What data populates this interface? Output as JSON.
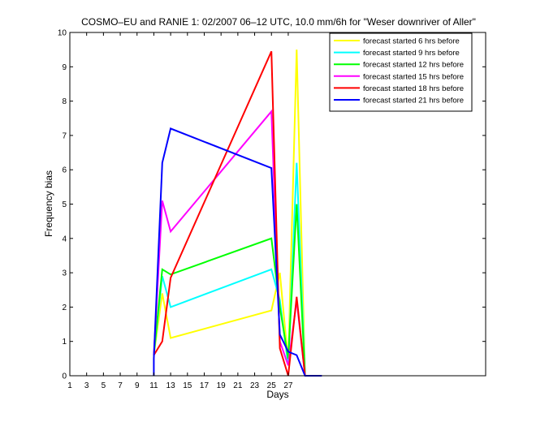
{
  "chart_data": {
    "type": "line",
    "title": "COSMO–EU and RANIE 1: 02/2007 06–12 UTC, 10.0 mm/6h for \"Weser downriver of Aller\"",
    "xlabel": "Days",
    "ylabel": "Frequency bias",
    "xlim": [
      1,
      50.5
    ],
    "ylim": [
      0,
      10
    ],
    "xticks": [
      1,
      3,
      5,
      7,
      9,
      11,
      13,
      15,
      17,
      19,
      21,
      23,
      25,
      27
    ],
    "yticks": [
      0,
      1,
      2,
      3,
      4,
      5,
      6,
      7,
      8,
      9,
      10
    ],
    "grid": false,
    "legend_position": "top-right",
    "series": [
      {
        "name": "forecast started 6 hrs before",
        "color": "#ffff00",
        "points": [
          [
            11,
            0.6
          ],
          [
            12,
            2.4
          ],
          [
            13,
            1.1
          ],
          [
            25,
            1.9
          ],
          [
            26,
            3.0
          ],
          [
            27,
            0.4
          ],
          [
            28,
            9.5
          ],
          [
            29,
            0.0
          ]
        ]
      },
      {
        "name": "forecast started 9 hrs before",
        "color": "#00ffff",
        "points": [
          [
            11,
            0.6
          ],
          [
            12,
            2.9
          ],
          [
            13,
            2.0
          ],
          [
            25,
            3.1
          ],
          [
            26,
            2.2
          ],
          [
            27,
            0.3
          ],
          [
            28,
            6.2
          ],
          [
            29,
            0.0
          ]
        ]
      },
      {
        "name": "forecast started 12 hrs before",
        "color": "#00ff00",
        "points": [
          [
            11,
            0.6
          ],
          [
            12,
            3.1
          ],
          [
            13,
            2.95
          ],
          [
            25,
            4.0
          ],
          [
            26,
            2.0
          ],
          [
            27,
            0.5
          ],
          [
            28,
            5.0
          ],
          [
            29,
            0.0
          ]
        ]
      },
      {
        "name": "forecast started 15 hrs before",
        "color": "#ff00ff",
        "points": [
          [
            11,
            0.6
          ],
          [
            12,
            5.1
          ],
          [
            13,
            4.2
          ],
          [
            25,
            7.7
          ],
          [
            26,
            1.0
          ],
          [
            27,
            0.3
          ],
          [
            28,
            2.2
          ],
          [
            29,
            0.0
          ]
        ]
      },
      {
        "name": "forecast started 18 hrs before",
        "color": "#ff0000",
        "points": [
          [
            11,
            0.6
          ],
          [
            12,
            1.0
          ],
          [
            13,
            2.85
          ],
          [
            25,
            9.45
          ],
          [
            26,
            0.8
          ],
          [
            27,
            0.0
          ],
          [
            28,
            2.3
          ],
          [
            29,
            0.0
          ]
        ]
      },
      {
        "name": "forecast started 21 hrs before",
        "color": "#0000ff",
        "points": [
          [
            11,
            0.0
          ],
          [
            11,
            0.5
          ],
          [
            12,
            6.2
          ],
          [
            13,
            7.2
          ],
          [
            25,
            6.05
          ],
          [
            26,
            1.2
          ],
          [
            27,
            0.7
          ],
          [
            28,
            0.6
          ],
          [
            29,
            0.0
          ],
          [
            31,
            0.0
          ]
        ]
      }
    ]
  }
}
